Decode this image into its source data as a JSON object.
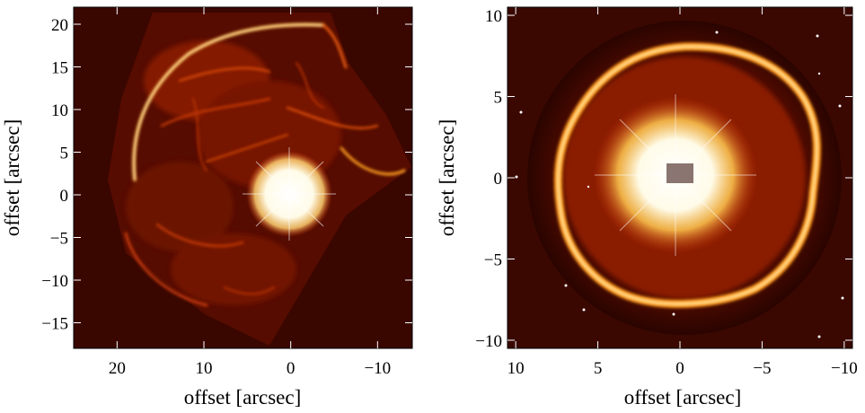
{
  "panels": [
    {
      "id": "left",
      "xlabel": "offset [arcsec]",
      "ylabel": "offset [arcsec]",
      "xlim": [
        25,
        -14
      ],
      "ylim": [
        -18,
        22
      ],
      "xticks": [
        {
          "value": 20,
          "label": "20"
        },
        {
          "value": 10,
          "label": "10"
        },
        {
          "value": 0,
          "label": "0"
        },
        {
          "value": -10,
          "label": "−10"
        }
      ],
      "yticks": [
        {
          "value": 20,
          "label": "20"
        },
        {
          "value": 15,
          "label": "15"
        },
        {
          "value": 10,
          "label": "10"
        },
        {
          "value": 5,
          "label": "5"
        },
        {
          "value": 0,
          "label": "0"
        },
        {
          "value": -5,
          "label": "−5"
        },
        {
          "value": -10,
          "label": "−10"
        },
        {
          "value": -15,
          "label": "−15"
        }
      ]
    },
    {
      "id": "right",
      "xlabel": "offset [arcsec]",
      "ylabel": "offset [arcsec]",
      "xlim": [
        10.5,
        -10.5
      ],
      "ylim": [
        -10.5,
        10.5
      ],
      "xticks": [
        {
          "value": 10,
          "label": "10"
        },
        {
          "value": 5,
          "label": "5"
        },
        {
          "value": 0,
          "label": "0"
        },
        {
          "value": -5,
          "label": "−5"
        },
        {
          "value": -10,
          "label": "−10"
        }
      ],
      "yticks": [
        {
          "value": 10,
          "label": "10"
        },
        {
          "value": 5,
          "label": "5"
        },
        {
          "value": 0,
          "label": "0"
        },
        {
          "value": -5,
          "label": "−5"
        },
        {
          "value": -10,
          "label": "−10"
        }
      ]
    }
  ],
  "colors": {
    "background": "#2a0400",
    "nebula_dark": "#5a0e00",
    "nebula_mid": "#d8400a",
    "nebula_bright": "#ffb030",
    "nebula_hot": "#fff6c8",
    "core": "#ffffff"
  }
}
